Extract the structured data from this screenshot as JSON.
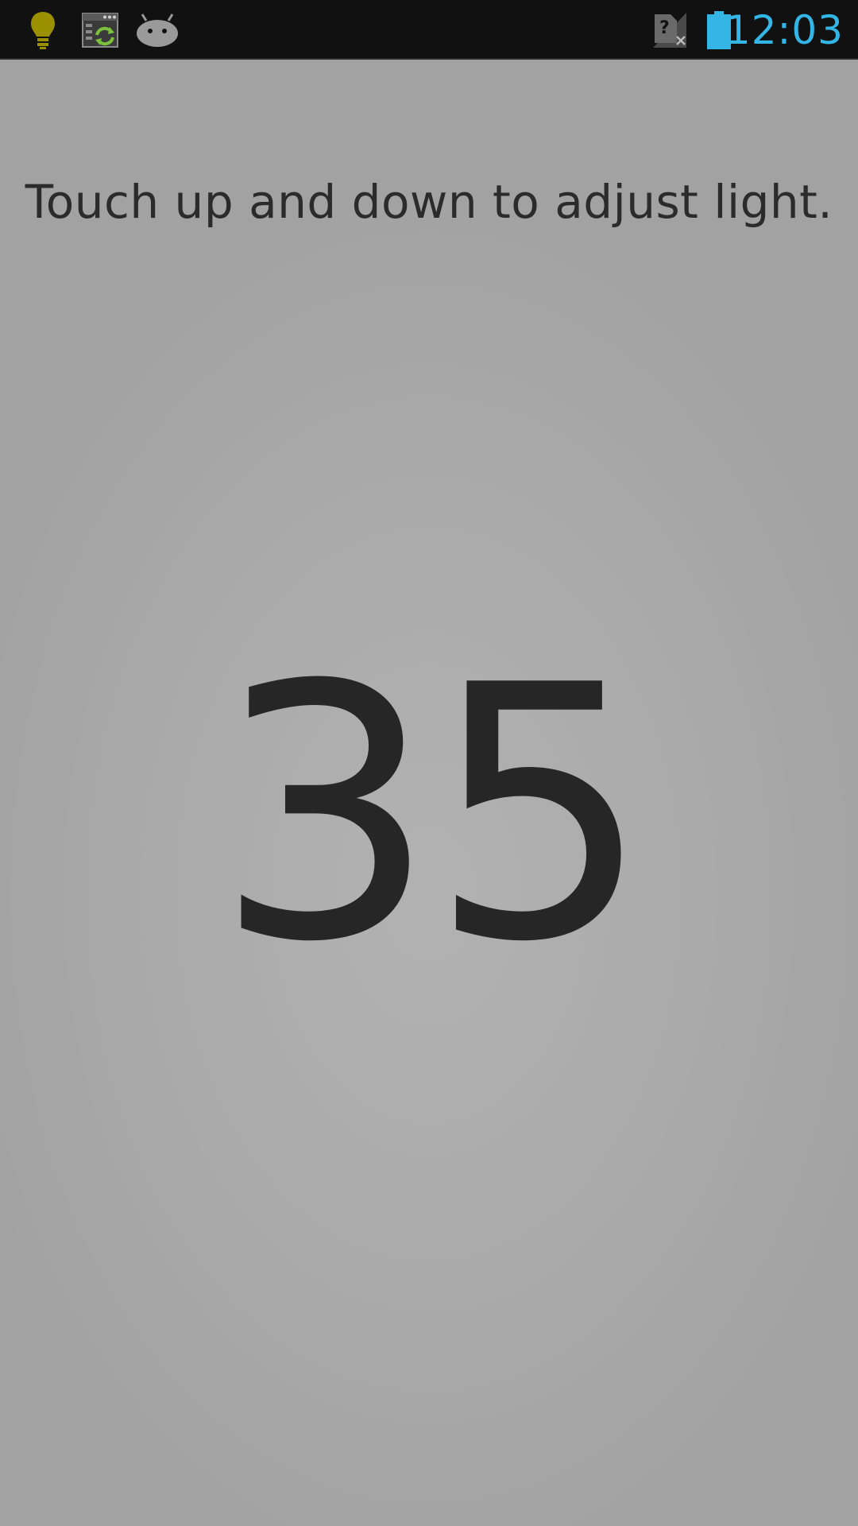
{
  "status_bar": {
    "clock": "12:03",
    "notifications": [
      "lightbulb-icon",
      "settings-sync-icon",
      "android-icon"
    ],
    "indicators": [
      "no-sim-icon",
      "battery-icon"
    ],
    "colors": {
      "clock": "#33b5e5",
      "battery": "#33b5e5",
      "bulb": "#9a9000",
      "sync": "#7cc13c"
    }
  },
  "main": {
    "instruction": "Touch up and down to adjust light.",
    "light_level": "35"
  }
}
